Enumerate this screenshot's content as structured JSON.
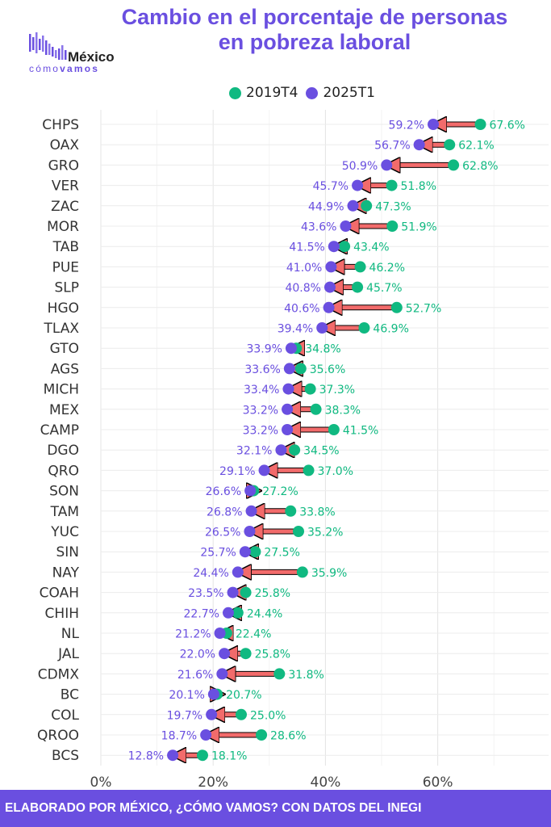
{
  "title": {
    "line1": "Cambio en el porcentaje de personas",
    "line2": "en pobreza laboral"
  },
  "logo": {
    "main": "México",
    "sub_prefix": "cómo",
    "sub_bold": "vamos"
  },
  "footer": "ELABORADO POR MÉXICO, ¿CÓMO VAMOS? CON DATOS DEL INEGI",
  "colors": {
    "series_2019": "#10b981",
    "series_2025": "#6a4fe0",
    "arrow": "#f26b6b",
    "title": "#6a4fe0",
    "grid": "#ebebeb"
  },
  "chart_data": {
    "type": "dumbbell",
    "title": "Cambio en el porcentaje de personas en pobreza laboral",
    "xlim": [
      0,
      80
    ],
    "xticks": [
      "0%",
      "20%",
      "40%",
      "60%"
    ],
    "xtick_values": [
      0,
      20,
      40,
      60
    ],
    "grid": true,
    "legend_position": "top",
    "categories": [
      "CHPS",
      "OAX",
      "GRO",
      "VER",
      "ZAC",
      "MOR",
      "TAB",
      "PUE",
      "SLP",
      "HGO",
      "TLAX",
      "GTO",
      "AGS",
      "MICH",
      "MEX",
      "CAMP",
      "DGO",
      "QRO",
      "SON",
      "TAM",
      "YUC",
      "SIN",
      "NAY",
      "COAH",
      "CHIH",
      "NL",
      "JAL",
      "CDMX",
      "BC",
      "COL",
      "QROO",
      "BCS"
    ],
    "series": [
      {
        "name": "2019T4",
        "values": [
          67.6,
          62.1,
          62.8,
          51.8,
          47.3,
          51.9,
          43.4,
          46.2,
          45.7,
          52.7,
          46.9,
          34.8,
          35.6,
          37.3,
          38.3,
          41.5,
          34.5,
          37.0,
          27.2,
          33.8,
          35.2,
          27.5,
          35.9,
          25.8,
          24.4,
          22.4,
          25.8,
          31.8,
          20.7,
          25.0,
          28.6,
          18.1
        ],
        "labels": [
          "67.6%",
          "62.1%",
          "62.8%",
          "51.8%",
          "47.3%",
          "51.9%",
          "43.4%",
          "46.2%",
          "45.7%",
          "52.7%",
          "46.9%",
          "34.8%",
          "35.6%",
          "37.3%",
          "38.3%",
          "41.5%",
          "34.5%",
          "37.0%",
          "27.2%",
          "33.8%",
          "35.2%",
          "27.5%",
          "35.9%",
          "25.8%",
          "24.4%",
          "22.4%",
          "25.8%",
          "31.8%",
          "20.7%",
          "25.0%",
          "28.6%",
          "18.1%"
        ]
      },
      {
        "name": "2025T1",
        "values": [
          59.2,
          56.7,
          50.9,
          45.7,
          44.9,
          43.6,
          41.5,
          41.0,
          40.8,
          40.6,
          39.4,
          33.9,
          33.6,
          33.4,
          33.2,
          33.2,
          32.1,
          29.1,
          26.6,
          26.8,
          26.5,
          25.7,
          24.4,
          23.5,
          22.7,
          21.2,
          22.0,
          21.6,
          20.1,
          19.7,
          18.7,
          12.8
        ],
        "labels": [
          "59.2%",
          "56.7%",
          "50.9%",
          "45.7%",
          "44.9%",
          "43.6%",
          "41.5%",
          "41.0%",
          "40.8%",
          "40.6%",
          "39.4%",
          "33.9%",
          "33.6%",
          "33.4%",
          "33.2%",
          "33.2%",
          "32.1%",
          "29.1%",
          "26.6%",
          "26.8%",
          "26.5%",
          "25.7%",
          "24.4%",
          "23.5%",
          "22.7%",
          "21.2%",
          "22.0%",
          "21.6%",
          "20.1%",
          "19.7%",
          "18.7%",
          "12.8%"
        ]
      }
    ]
  }
}
